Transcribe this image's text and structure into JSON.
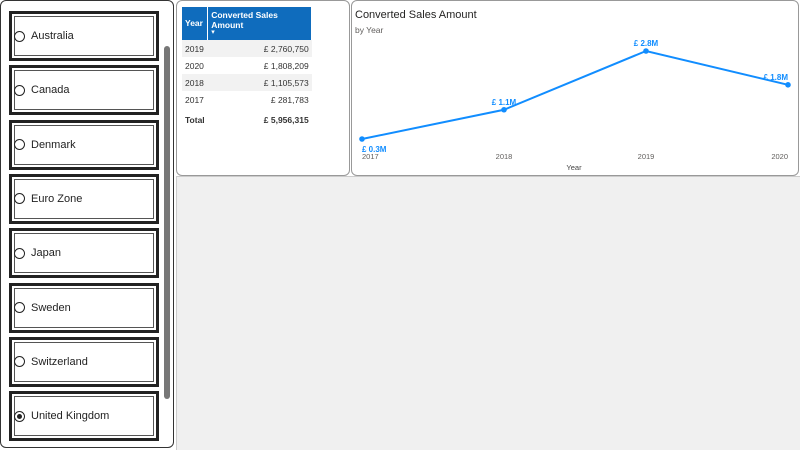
{
  "slicer": {
    "items": [
      "Australia",
      "Canada",
      "Denmark",
      "Euro Zone",
      "Japan",
      "Sweden",
      "Switzerland",
      "United Kingdom"
    ],
    "selected_index": 7
  },
  "table": {
    "headers": [
      "Year",
      "Converted Sales Amount"
    ],
    "rows": [
      [
        "2019",
        "£ 2,760,750"
      ],
      [
        "2020",
        "£ 1,808,209"
      ],
      [
        "2018",
        "£ 1,105,573"
      ],
      [
        "2017",
        "£ 281,783"
      ]
    ],
    "total": [
      "Total",
      "£ 5,956,315"
    ]
  },
  "chart_data": {
    "type": "line",
    "title": "Converted Sales Amount",
    "subtitle": "by Year",
    "x_label": "Year",
    "categories": [
      "2017",
      "2018",
      "2019",
      "2020"
    ],
    "values": [
      281783,
      1105573,
      2760750,
      1808209
    ],
    "value_labels": [
      "£ 0.3M",
      "£ 1.1M",
      "£ 2.8M",
      "£ 1.8M"
    ],
    "color": "#118dff"
  }
}
